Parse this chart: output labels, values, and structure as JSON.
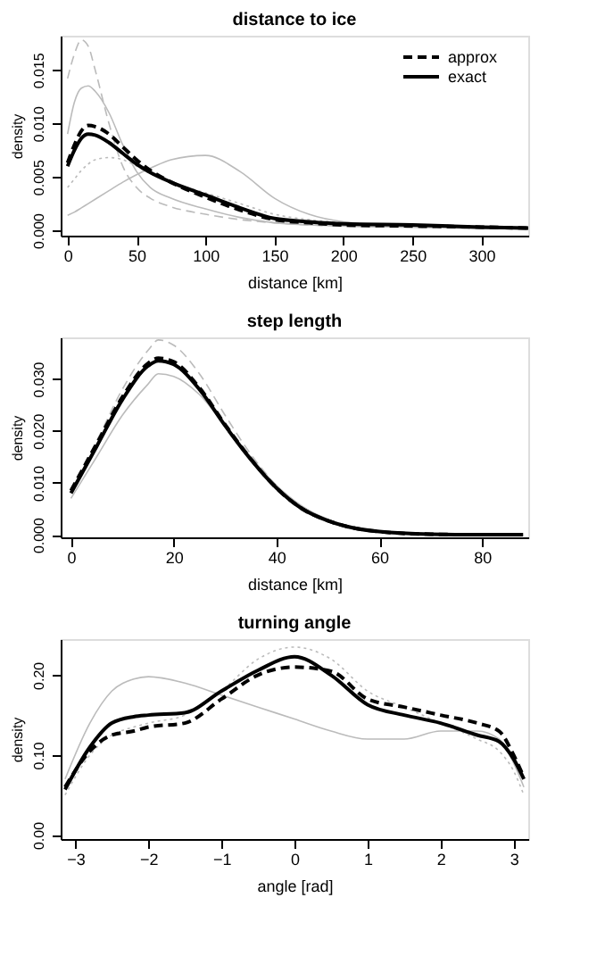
{
  "chart_data": [
    {
      "type": "line",
      "title": "distance to ice",
      "xlabel": "distance [km]",
      "ylabel": "density",
      "xlim": [
        -5,
        334
      ],
      "ylim": [
        -0.0005,
        0.0182
      ],
      "xticks": [
        0,
        50,
        100,
        150,
        200,
        250,
        300
      ],
      "yticks": [
        {
          "value": 0,
          "label": "0.000"
        },
        {
          "value": 0.005,
          "label": "0.005"
        },
        {
          "value": 0.01,
          "label": "0.010"
        },
        {
          "value": 0.015,
          "label": "0.015"
        }
      ],
      "grid": false,
      "legend": "top right",
      "x": [
        0,
        5,
        10,
        15,
        20,
        30,
        40,
        50,
        60,
        75,
        100,
        125,
        150,
        175,
        200,
        250,
        300,
        334
      ],
      "series": [
        {
          "color": "#bbbbbb",
          "line_style": "dashed",
          "values": [
            0.0142,
            0.0165,
            0.0178,
            0.0172,
            0.015,
            0.01,
            0.006,
            0.004,
            0.003,
            0.0022,
            0.0015,
            0.001,
            0.0007,
            0.0005,
            0.0004,
            0.0003,
            0.0002,
            0.0002
          ]
        },
        {
          "color": "#bbbbbb",
          "line_style": "solid",
          "values": [
            0.009,
            0.012,
            0.0133,
            0.0135,
            0.013,
            0.011,
            0.008,
            0.0055,
            0.004,
            0.003,
            0.002,
            0.0012,
            0.0007,
            0.0005,
            0.0004,
            0.0003,
            0.0002,
            0.0002
          ]
        },
        {
          "color": "#bbbbbb",
          "line_style": "solid",
          "values": [
            0.0014,
            0.0017,
            0.0021,
            0.0025,
            0.0029,
            0.0037,
            0.0045,
            0.0052,
            0.0058,
            0.0066,
            0.007,
            0.0055,
            0.003,
            0.0015,
            0.0008,
            0.0004,
            0.0002,
            0.0001
          ]
        },
        {
          "color": "#bbbbbb",
          "line_style": "dotted",
          "values": [
            0.004,
            0.0048,
            0.0056,
            0.0062,
            0.0066,
            0.0068,
            0.0066,
            0.006,
            0.0053,
            0.0045,
            0.0035,
            0.0025,
            0.0015,
            0.001,
            0.0007,
            0.0004,
            0.0003,
            0.0002
          ]
        },
        {
          "name": "approx",
          "color": "#000000",
          "line_style": "dashed",
          "values": [
            0.0063,
            0.008,
            0.0093,
            0.0098,
            0.0097,
            0.009,
            0.0078,
            0.0066,
            0.0056,
            0.0045,
            0.0031,
            0.0019,
            0.001,
            0.0007,
            0.0005,
            0.0004,
            0.0003,
            0.0002
          ]
        },
        {
          "name": "exact",
          "color": "#000000",
          "line_style": "solid",
          "values": [
            0.006,
            0.0075,
            0.0086,
            0.009,
            0.0089,
            0.0082,
            0.0072,
            0.0062,
            0.0054,
            0.0045,
            0.0033,
            0.0021,
            0.0011,
            0.0008,
            0.0006,
            0.0005,
            0.0003,
            0.0002
          ]
        }
      ]
    },
    {
      "type": "line",
      "title": "step length",
      "xlabel": "distance [km]",
      "ylabel": "density",
      "xlim": [
        -2,
        89
      ],
      "ylim": [
        -0.0005,
        0.038
      ],
      "xticks": [
        0,
        20,
        40,
        60,
        80
      ],
      "yticks": [
        {
          "value": 0,
          "label": "0.000"
        },
        {
          "value": 0.01,
          "label": "0.010"
        },
        {
          "value": 0.02,
          "label": "0.020"
        },
        {
          "value": 0.03,
          "label": "0.030"
        }
      ],
      "grid": false,
      "x": [
        0,
        5,
        10,
        15,
        17,
        20,
        25,
        30,
        35,
        40,
        45,
        50,
        55,
        60,
        70,
        80,
        88
      ],
      "series": [
        {
          "color": "#bbbbbb",
          "line_style": "dashed",
          "values": [
            0.0085,
            0.018,
            0.028,
            0.0355,
            0.0375,
            0.0365,
            0.031,
            0.023,
            0.0155,
            0.0095,
            0.0052,
            0.0028,
            0.0013,
            0.0006,
            0.0001,
            0,
            0
          ]
        },
        {
          "color": "#bbbbbb",
          "line_style": "solid",
          "values": [
            0.007,
            0.015,
            0.023,
            0.029,
            0.031,
            0.0305,
            0.027,
            0.021,
            0.015,
            0.0095,
            0.0055,
            0.003,
            0.0015,
            0.0007,
            0.0001,
            0,
            0
          ]
        },
        {
          "color": "#000000",
          "line_style": "dashed",
          "values": [
            0.0085,
            0.0175,
            0.0265,
            0.033,
            0.034,
            0.0333,
            0.0283,
            0.0212,
            0.0146,
            0.009,
            0.005,
            0.0027,
            0.0013,
            0.0006,
            0.0001,
            0,
            0
          ]
        },
        {
          "color": "#000000",
          "line_style": "solid",
          "values": [
            0.008,
            0.017,
            0.026,
            0.0325,
            0.0335,
            0.0328,
            0.028,
            0.021,
            0.0145,
            0.009,
            0.005,
            0.0027,
            0.0013,
            0.0006,
            0.0001,
            0,
            0
          ]
        }
      ]
    },
    {
      "type": "line",
      "title": "turning angle",
      "xlabel": "angle [rad]",
      "ylabel": "density",
      "xlim": [
        -3.2,
        3.2
      ],
      "ylim": [
        -0.005,
        0.245
      ],
      "xticks": [
        -3,
        -2,
        -1,
        0,
        1,
        2,
        3
      ],
      "yticks": [
        {
          "value": 0,
          "label": "0.00"
        },
        {
          "value": 0.1,
          "label": "0.10"
        },
        {
          "value": 0.2,
          "label": "0.20"
        }
      ],
      "grid": false,
      "x": [
        -3.14,
        -2.8,
        -2.5,
        -2.2,
        -2,
        -1.5,
        -1,
        -0.5,
        0,
        0.5,
        1,
        1.5,
        2,
        2.5,
        2.8,
        3,
        3.14
      ],
      "series": [
        {
          "color": "#bbbbbb",
          "line_style": "solid",
          "values": [
            0.07,
            0.14,
            0.18,
            0.195,
            0.198,
            0.19,
            0.175,
            0.16,
            0.145,
            0.13,
            0.12,
            0.12,
            0.13,
            0.13,
            0.12,
            0.09,
            0.06
          ]
        },
        {
          "color": "#bbbbbb",
          "line_style": "dotted",
          "values": [
            0.05,
            0.1,
            0.125,
            0.135,
            0.14,
            0.15,
            0.18,
            0.22,
            0.235,
            0.22,
            0.18,
            0.16,
            0.14,
            0.12,
            0.105,
            0.08,
            0.05
          ]
        },
        {
          "color": "#000000",
          "line_style": "dashed",
          "values": [
            0.06,
            0.105,
            0.125,
            0.13,
            0.135,
            0.14,
            0.17,
            0.2,
            0.21,
            0.205,
            0.17,
            0.16,
            0.15,
            0.14,
            0.13,
            0.1,
            0.072
          ]
        },
        {
          "color": "#000000",
          "line_style": "solid",
          "values": [
            0.057,
            0.11,
            0.14,
            0.148,
            0.15,
            0.153,
            0.18,
            0.206,
            0.223,
            0.2,
            0.163,
            0.15,
            0.14,
            0.125,
            0.117,
            0.095,
            0.07
          ]
        }
      ]
    }
  ]
}
